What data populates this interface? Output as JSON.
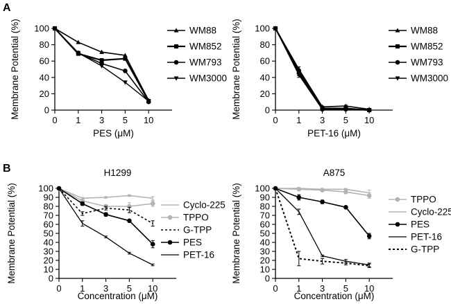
{
  "panel_labels": [
    "A",
    "B"
  ],
  "chart_data": [
    {
      "type": "line",
      "panel": "A",
      "title": "",
      "xlabel": "PES (μM)",
      "ylabel": "Membrane Potential (%)",
      "x": [
        "0",
        "1",
        "3",
        "5",
        "10"
      ],
      "ylim": [
        0,
        100
      ],
      "yticks": [
        "0",
        "20",
        "40",
        "60",
        "80",
        "100"
      ],
      "legend_position": "right",
      "series": [
        {
          "name": "WM88",
          "color": "#000000",
          "dash": "solid",
          "width": 1.6,
          "marker": "triangle",
          "values": [
            100,
            83,
            71,
            67,
            12
          ]
        },
        {
          "name": "WM852",
          "color": "#000000",
          "dash": "solid",
          "width": 2.2,
          "marker": "square",
          "values": [
            100,
            69,
            61,
            63,
            11
          ]
        },
        {
          "name": "WM793",
          "color": "#000000",
          "dash": "solid",
          "width": 1.6,
          "marker": "circle",
          "values": [
            100,
            70,
            57,
            48,
            10
          ]
        },
        {
          "name": "WM3000",
          "color": "#000000",
          "dash": "solid",
          "width": 1.4,
          "marker": "triangle-down",
          "values": [
            100,
            70,
            54,
            34,
            11
          ]
        }
      ]
    },
    {
      "type": "line",
      "panel": "A",
      "title": "",
      "xlabel": "PET-16 (μM)",
      "ylabel": "Membrane Potential (%)",
      "x": [
        "0",
        "1",
        "3",
        "5",
        "10"
      ],
      "ylim": [
        0,
        100
      ],
      "yticks": [
        "0",
        "20",
        "40",
        "60",
        "80",
        "100"
      ],
      "legend_position": "right",
      "series": [
        {
          "name": "WM88",
          "color": "#000000",
          "dash": "solid",
          "width": 1.6,
          "marker": "triangle",
          "values": [
            100,
            50,
            4,
            5,
            1
          ],
          "errors": [
            0,
            3,
            1,
            1,
            1
          ]
        },
        {
          "name": "WM852",
          "color": "#000000",
          "dash": "solid",
          "width": 2.2,
          "marker": "square",
          "values": [
            100,
            47,
            2,
            2,
            0
          ],
          "errors": [
            0,
            3,
            1,
            1,
            0
          ]
        },
        {
          "name": "WM793",
          "color": "#000000",
          "dash": "solid",
          "width": 1.6,
          "marker": "circle",
          "values": [
            100,
            45,
            1,
            1,
            0
          ],
          "errors": [
            0,
            3,
            0,
            0,
            0
          ]
        },
        {
          "name": "WM3000",
          "color": "#000000",
          "dash": "solid",
          "width": 1.4,
          "marker": "triangle-down",
          "values": [
            100,
            43,
            1,
            1,
            0
          ],
          "errors": [
            0,
            3,
            0,
            0,
            0
          ]
        }
      ]
    },
    {
      "type": "line",
      "panel": "B",
      "title": "H1299",
      "xlabel": "Concentration (μM)",
      "ylabel": "Membrane Potential (%)",
      "x": [
        "0",
        "1",
        "3",
        "5",
        "10"
      ],
      "ylim": [
        0,
        100
      ],
      "yticks": [
        "0",
        "10",
        "20",
        "30",
        "40",
        "50",
        "60",
        "70",
        "80",
        "90",
        "100"
      ],
      "legend_position": "right",
      "series": [
        {
          "name": "Cyclo-225",
          "color": "#b3b3b3",
          "dash": "solid",
          "width": 1.6,
          "marker": "none",
          "values": [
            100,
            89,
            90,
            92,
            89
          ],
          "errors": [
            0,
            1,
            1,
            1,
            2
          ]
        },
        {
          "name": "TPPO",
          "color": "#b3b3b3",
          "dash": "solid",
          "width": 1.6,
          "marker": "circle",
          "values": [
            100,
            86,
            80,
            80,
            83
          ],
          "errors": [
            0,
            2,
            2,
            4,
            3
          ]
        },
        {
          "name": "G-TPP",
          "color": "#000000",
          "dash": "dashed",
          "width": 1.6,
          "marker": "none",
          "values": [
            100,
            72,
            78,
            76,
            61
          ],
          "errors": [
            0,
            2,
            2,
            3,
            3
          ]
        },
        {
          "name": "PES",
          "color": "#000000",
          "dash": "solid",
          "width": 1.6,
          "marker": "circle",
          "values": [
            100,
            83,
            71,
            64,
            38
          ],
          "errors": [
            0,
            2,
            2,
            1,
            4
          ]
        },
        {
          "name": "PET-16",
          "color": "#000000",
          "dash": "solid",
          "width": 1.3,
          "marker": "none",
          "values": [
            100,
            61,
            46,
            28,
            15
          ],
          "errors": [
            0,
            3,
            1,
            1,
            1
          ]
        }
      ]
    },
    {
      "type": "line",
      "panel": "B",
      "title": "A875",
      "xlabel": "Concentration (μM)",
      "ylabel": "Membrane Potential (%)",
      "x": [
        "0",
        "1",
        "3",
        "5",
        "10"
      ],
      "ylim": [
        0,
        100
      ],
      "yticks": [
        "0",
        "10",
        "20",
        "30",
        "40",
        "50",
        "60",
        "70",
        "80",
        "90",
        "100"
      ],
      "legend_position": "right",
      "series": [
        {
          "name": "TPPO",
          "color": "#b3b3b3",
          "dash": "solid",
          "width": 1.6,
          "marker": "circle",
          "values": [
            100,
            99,
            98,
            96,
            92
          ],
          "errors": [
            0,
            1,
            1,
            2,
            3
          ]
        },
        {
          "name": "Cyclo-225",
          "color": "#b3b3b3",
          "dash": "solid",
          "width": 1.6,
          "marker": "none",
          "values": [
            100,
            100,
            99,
            99,
            95
          ],
          "errors": [
            0,
            1,
            1,
            1,
            3
          ]
        },
        {
          "name": "PES",
          "color": "#000000",
          "dash": "solid",
          "width": 1.6,
          "marker": "circle",
          "values": [
            100,
            90,
            85,
            79,
            47
          ],
          "errors": [
            0,
            3,
            2,
            1,
            3
          ]
        },
        {
          "name": "PET-16",
          "color": "#000000",
          "dash": "solid",
          "width": 1.3,
          "marker": "none",
          "values": [
            100,
            74,
            25,
            19,
            15
          ],
          "errors": [
            0,
            3,
            1,
            2,
            2
          ]
        },
        {
          "name": "G-TPP",
          "color": "#000000",
          "dash": "dashed",
          "width": 2,
          "marker": "none",
          "values": [
            100,
            22,
            19,
            17,
            14
          ],
          "errors": [
            0,
            8,
            3,
            2,
            2
          ]
        }
      ]
    }
  ]
}
